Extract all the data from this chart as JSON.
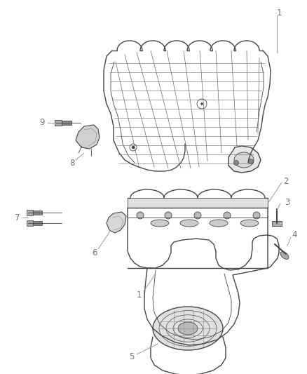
{
  "background_color": "#ffffff",
  "line_color": "#444444",
  "label_color": "#777777",
  "lw_main": 1.0,
  "lw_thin": 0.6,
  "lw_detail": 0.4
}
